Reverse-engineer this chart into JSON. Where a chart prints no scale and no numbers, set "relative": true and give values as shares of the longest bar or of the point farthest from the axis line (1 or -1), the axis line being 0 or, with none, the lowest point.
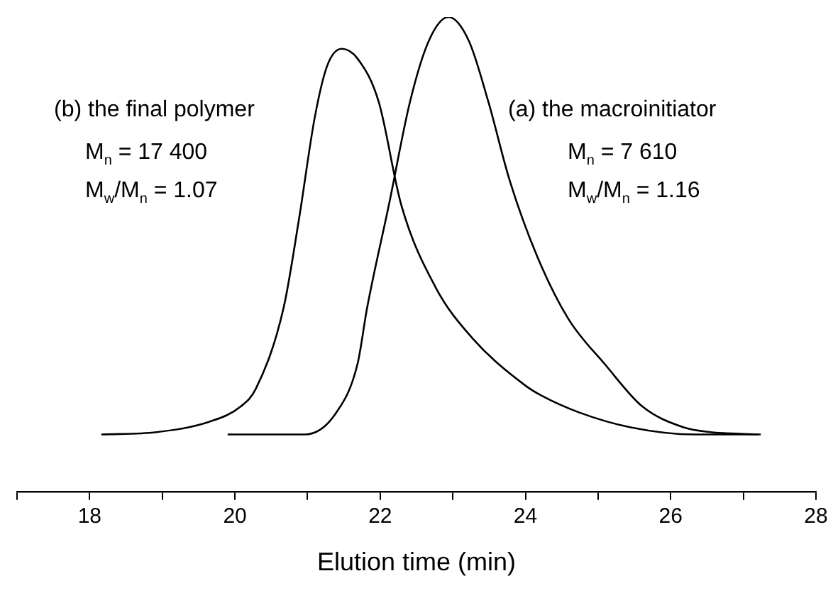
{
  "chart_data": {
    "type": "line",
    "relative": true,
    "xlabel": "Elution time (min)",
    "xlim": [
      17,
      28
    ],
    "xticks": [
      {
        "value": 17,
        "label": null
      },
      18,
      {
        "value": 19,
        "label": null
      },
      20,
      {
        "value": 21,
        "label": null
      },
      22,
      {
        "value": 23,
        "label": null
      },
      24,
      {
        "value": 25,
        "label": null
      },
      26,
      {
        "value": 27,
        "label": null
      },
      28
    ],
    "grid": false,
    "legend": false,
    "marker": "none",
    "line_style": "solid",
    "tick_labels": "x",
    "series": [
      {
        "color": "#000000",
        "x": [
          18.16,
          18.92,
          19.65,
          20.08,
          20.29,
          20.67,
          20.88,
          21.1,
          21.27,
          21.47,
          21.69,
          21.98,
          22.29,
          22.76,
          23.27,
          24.0,
          24.22,
          24.73,
          25.45,
          26.33,
          27.2
        ],
        "values": [
          0.12,
          0.125,
          0.147,
          0.179,
          0.217,
          0.387,
          0.572,
          0.789,
          0.897,
          0.933,
          0.912,
          0.821,
          0.604,
          0.431,
          0.323,
          0.223,
          0.202,
          0.167,
          0.135,
          0.12,
          0.12
        ]
      },
      {
        "color": "#000000",
        "x": [
          19.9,
          20.96,
          21.39,
          21.69,
          21.82,
          22.12,
          22.41,
          22.67,
          22.94,
          23.22,
          23.49,
          23.78,
          24.16,
          24.59,
          25.1,
          25.61,
          26.18,
          26.55,
          27.24
        ],
        "values": [
          0.12,
          0.12,
          0.165,
          0.27,
          0.387,
          0.604,
          0.821,
          0.95,
          1.0,
          0.95,
          0.821,
          0.657,
          0.496,
          0.364,
          0.267,
          0.179,
          0.135,
          0.125,
          0.12
        ]
      }
    ],
    "annotations": [
      "(b) the final polymer",
      "M$_{n}$ = 17 400",
      "M$_{w}$/M$_{n}$ = 1.07",
      "(a)  the macroinitiator",
      "M$_{n}$ = 7 610",
      "M$_{w}$/M$_{n}$ = 1.16"
    ]
  }
}
